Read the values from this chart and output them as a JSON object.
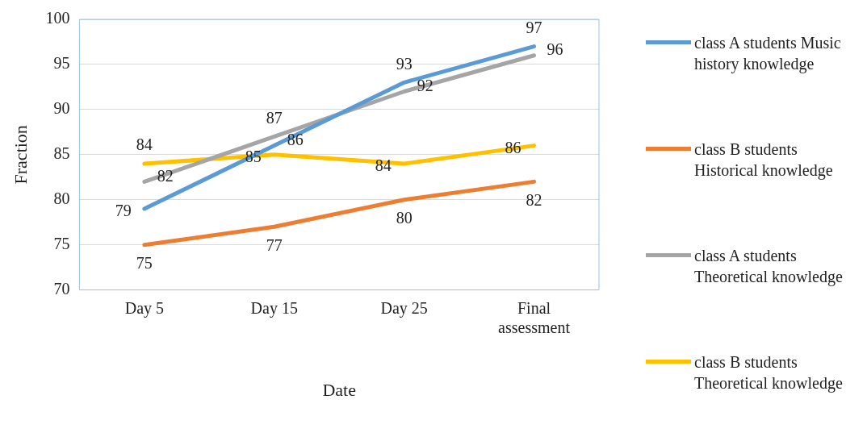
{
  "chart_data": {
    "type": "line",
    "xlabel": "Date",
    "ylabel": "Fraction",
    "categories": [
      "Day 5",
      "Day 15",
      "Day 25",
      "Final assessment"
    ],
    "series": [
      {
        "name": "class A students Music  history knowledge",
        "color": "#5b9bd5",
        "values": [
          79,
          86,
          93,
          97
        ]
      },
      {
        "name": "class B students Historical knowledge",
        "color": "#ed7d31",
        "values": [
          75,
          77,
          80,
          82
        ]
      },
      {
        "name": "class A students Theoretical knowledge",
        "color": "#a5a5a5",
        "values": [
          82,
          87,
          92,
          96
        ]
      },
      {
        "name": "class B students Theoretical knowledge",
        "color": "#ffc000",
        "values": [
          84,
          85,
          84,
          86
        ]
      }
    ],
    "ylim": [
      70,
      100
    ],
    "yticks": [
      70,
      75,
      80,
      85,
      90,
      95,
      100
    ],
    "grid": "y",
    "legend": "right",
    "marker": "none",
    "line_style": "solid",
    "data_labels": true
  }
}
